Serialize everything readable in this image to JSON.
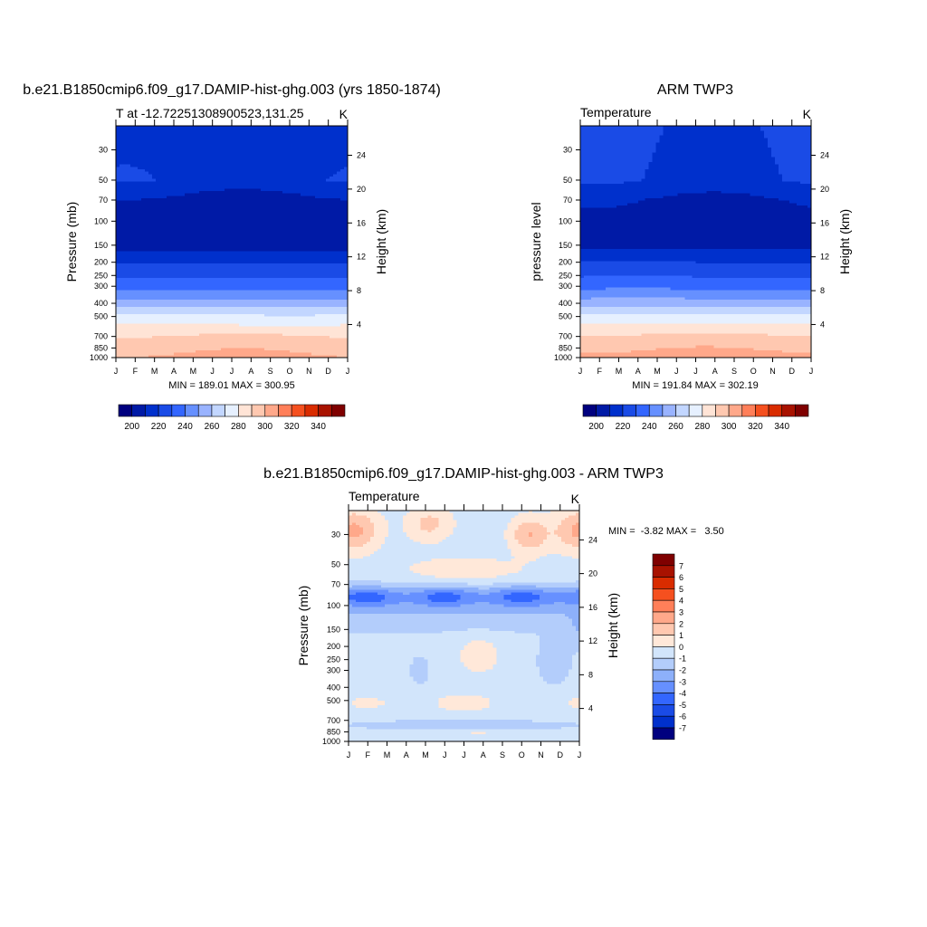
{
  "months": [
    "J",
    "F",
    "M",
    "A",
    "M",
    "J",
    "J",
    "A",
    "S",
    "O",
    "N",
    "D",
    "J"
  ],
  "pressure_ticks": [
    "30",
    "50",
    "70",
    "100",
    "150",
    "200",
    "250",
    "300",
    "400",
    "500",
    "700",
    "850",
    "1000"
  ],
  "pressure_values": [
    30,
    50,
    70,
    100,
    150,
    200,
    250,
    300,
    400,
    500,
    700,
    850,
    1000
  ],
  "height_ticks": [
    "24",
    "20",
    "16",
    "12",
    "8",
    "4"
  ],
  "height_values": [
    24,
    20,
    16,
    12,
    8,
    4
  ],
  "chart_data": [
    {
      "type": "heatmap",
      "title": "b.e21.B1850cmip6.f09_g17.DAMIP-hist-ghg.003 (yrs 1850-1874)",
      "left_label": "T at -12.72251308900523,131.25",
      "units": "K",
      "ylabel": "Pressure (mb)",
      "ylabel_right": "Height (km)",
      "ylim": [
        1000,
        20
      ],
      "stats": "MIN = 189.01 MAX = 300.95",
      "min": 189.01,
      "max": 300.95,
      "levels": [
        30,
        50,
        70,
        100,
        150,
        200,
        250,
        300,
        400,
        500,
        700,
        850,
        1000
      ],
      "profile_K": [
        206,
        208,
        197,
        193,
        195,
        209,
        218,
        226,
        244,
        262,
        281,
        288,
        292
      ],
      "seasonal_amp_K": 3
    },
    {
      "type": "heatmap",
      "title": "ARM TWP3",
      "left_label": "Temperature",
      "units": "K",
      "ylabel": "pressure level",
      "ylabel_right": "Height (km)",
      "ylim": [
        1000,
        20
      ],
      "stats": "MIN = 191.84 MAX = 302.19",
      "min": 191.84,
      "max": 302.19,
      "levels": [
        30,
        50,
        70,
        100,
        150,
        200,
        250,
        300,
        400,
        500,
        700,
        850,
        1000
      ],
      "profile_K": [
        210,
        209,
        199,
        194,
        197,
        210,
        219,
        227,
        245,
        263,
        282,
        289,
        294
      ],
      "seasonal_amp_K": 3
    },
    {
      "type": "heatmap",
      "title": "b.e21.B1850cmip6.f09_g17.DAMIP-hist-ghg.003 - ARM TWP3",
      "left_label": "Temperature",
      "units": "K",
      "ylabel": "Pressure (mb)",
      "ylabel_right": "Height (km)",
      "ylim": [
        1000,
        20
      ],
      "stats": "MIN =  -3.82 MAX =   3.50",
      "min": -3.82,
      "max": 3.5
    }
  ],
  "colorbar_top": {
    "labels": [
      "200",
      "220",
      "240",
      "260",
      "280",
      "300",
      "320",
      "340"
    ],
    "levels": [
      190,
      200,
      210,
      220,
      230,
      240,
      250,
      260,
      270,
      280,
      290,
      300,
      310,
      320,
      330,
      340,
      350
    ],
    "colors": [
      "#00007f",
      "#001aa6",
      "#0030cc",
      "#1a4be6",
      "#3366ff",
      "#6690ff",
      "#99b3ff",
      "#c2d6ff",
      "#e6f0ff",
      "#ffe4d6",
      "#ffc8b0",
      "#ffa88a",
      "#ff7f59",
      "#f5501f",
      "#d92c00",
      "#a81200",
      "#7f0000"
    ]
  },
  "colorbar_diff": {
    "labels": [
      "7",
      "6",
      "5",
      "4",
      "3",
      "2",
      "1",
      "0",
      "-1",
      "-2",
      "-3",
      "-4",
      "-5",
      "-6",
      "-7"
    ],
    "colors": [
      "#7f0000",
      "#a81200",
      "#d92c00",
      "#f5501f",
      "#ff7f59",
      "#ffa88a",
      "#ffc8b0",
      "#ffe8d9",
      "#d2e5fb",
      "#b3cdfb",
      "#8db0fa",
      "#6690ff",
      "#3366ff",
      "#1a4be6",
      "#0030cc",
      "#00007f"
    ]
  }
}
